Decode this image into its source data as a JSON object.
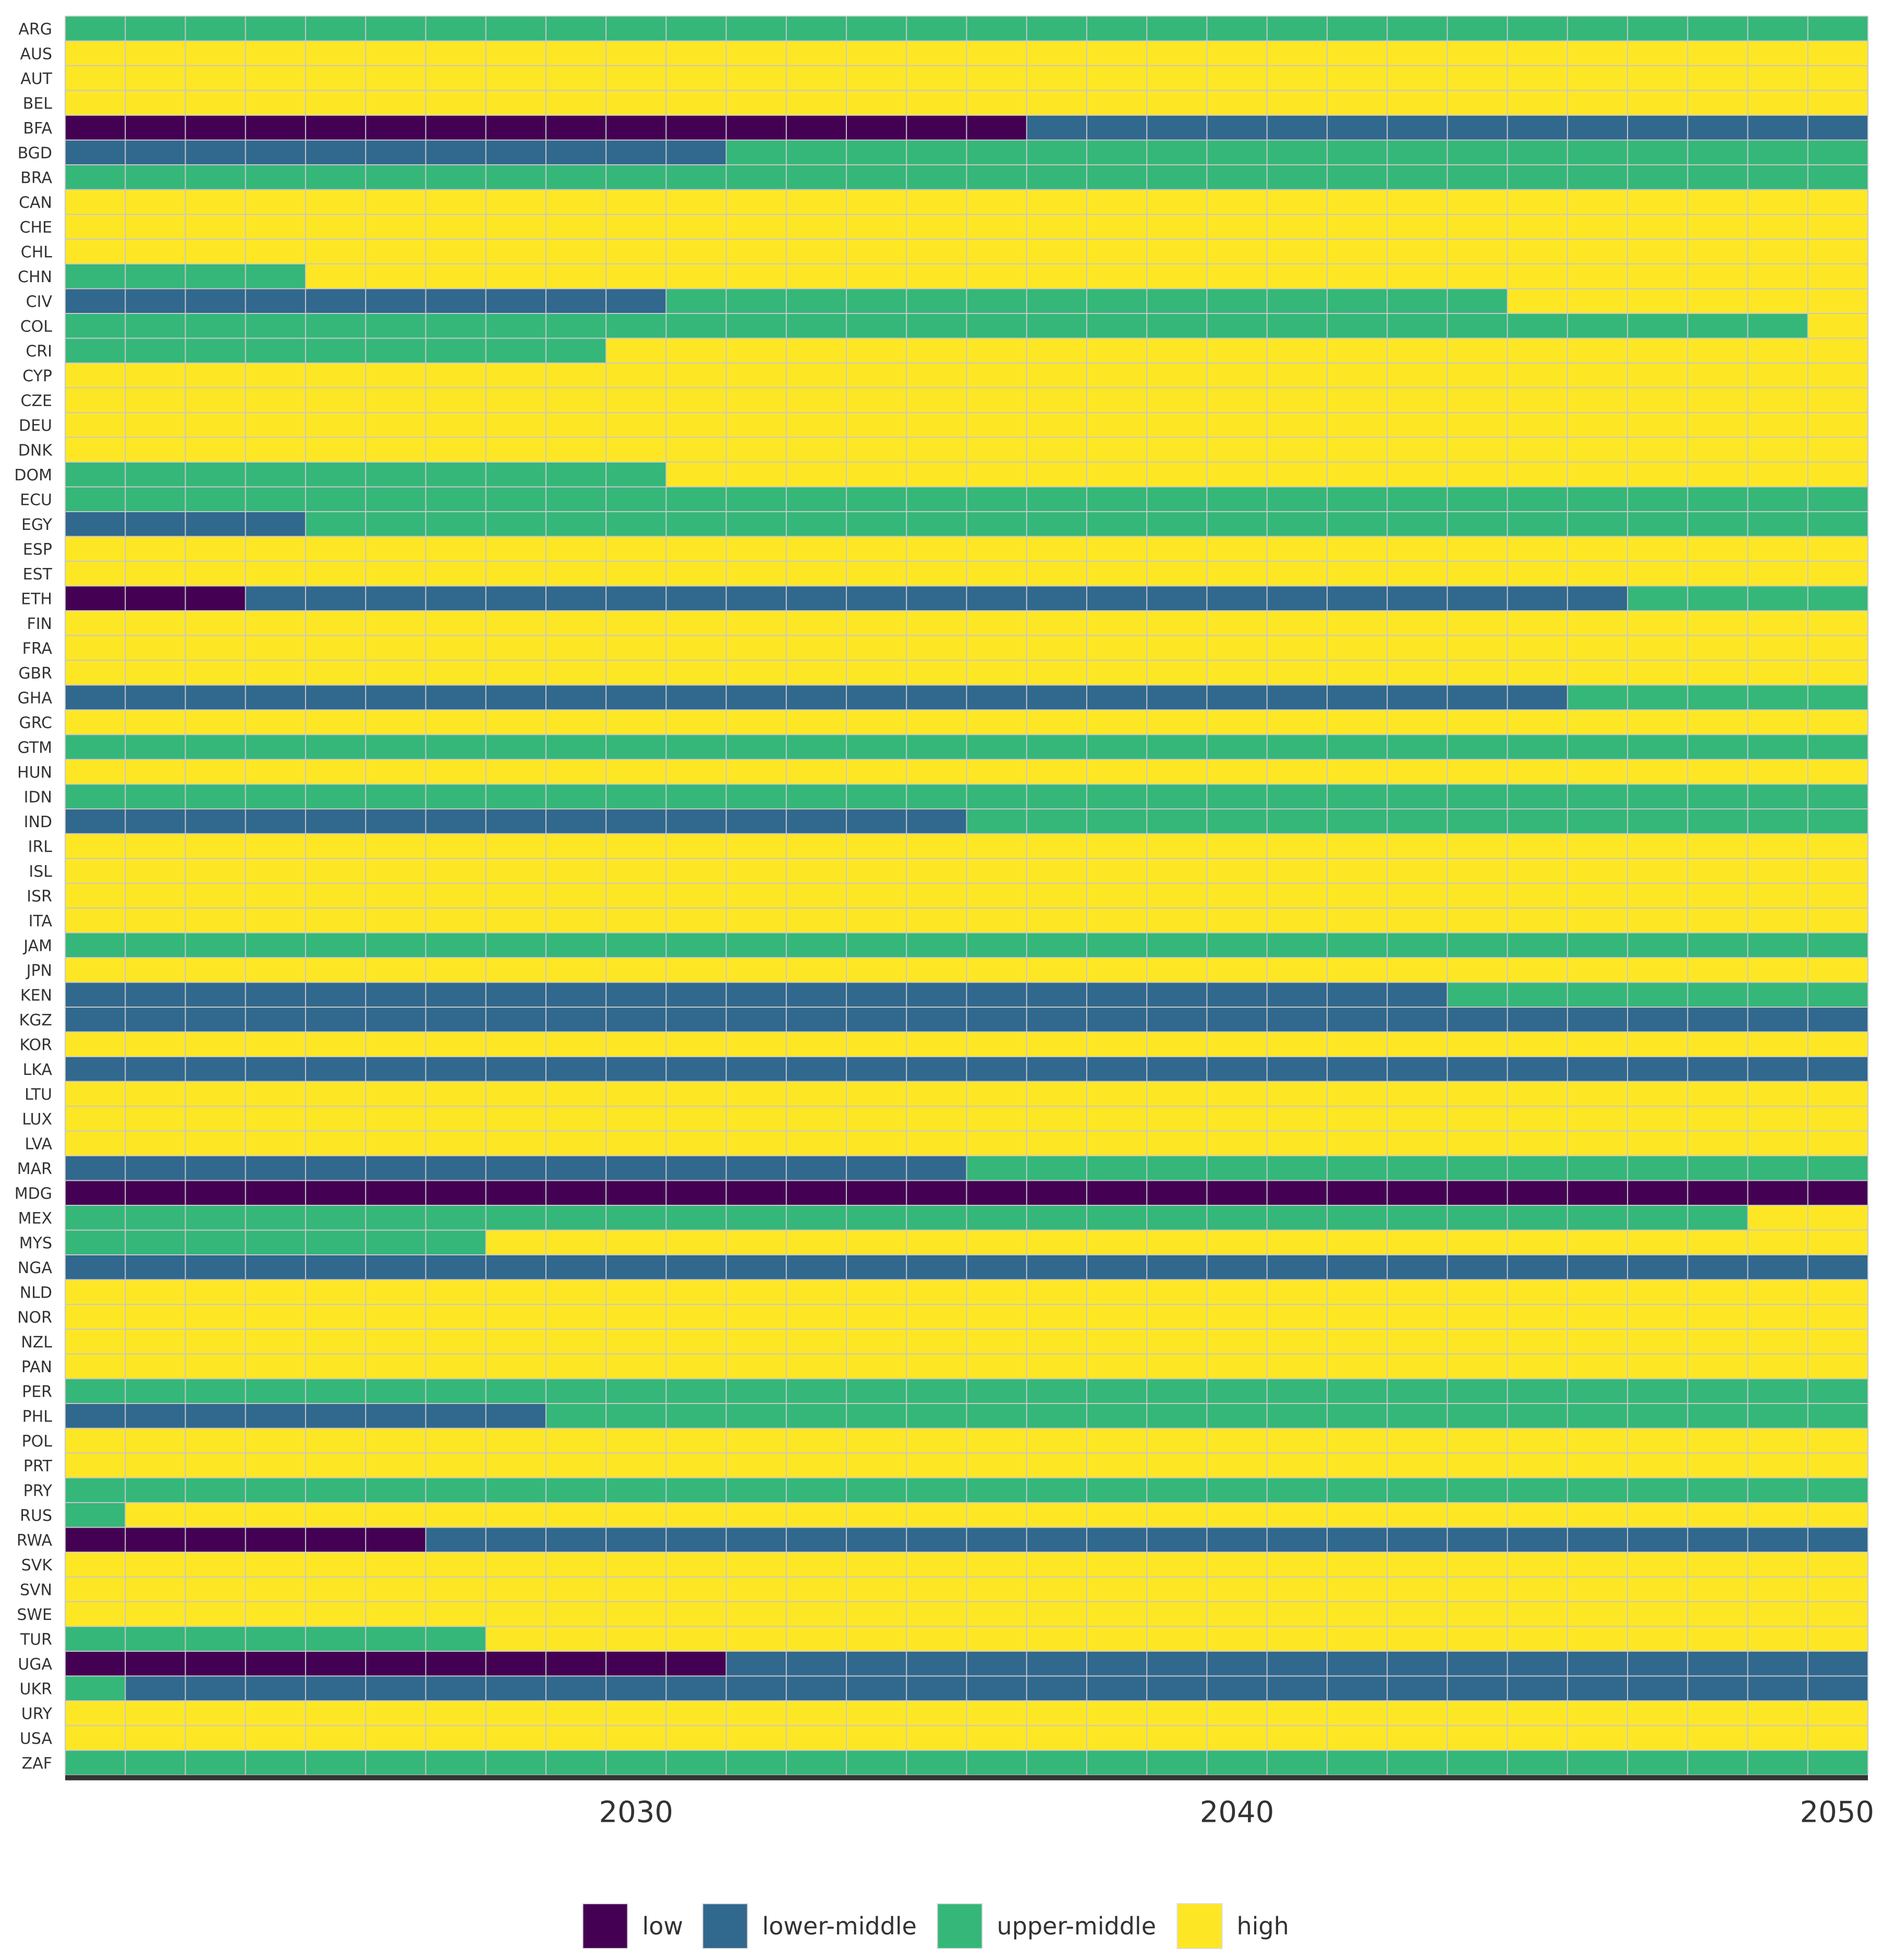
{
  "chart_data": {
    "type": "heatmap",
    "title": "",
    "xlabel": "",
    "ylabel": "",
    "years": [
      2021,
      2022,
      2023,
      2024,
      2025,
      2026,
      2027,
      2028,
      2029,
      2030,
      2031,
      2032,
      2033,
      2034,
      2035,
      2036,
      2037,
      2038,
      2039,
      2040,
      2041,
      2042,
      2043,
      2044,
      2045,
      2046,
      2047,
      2048,
      2049,
      2050
    ],
    "x_ticks": [
      "2030",
      "2040",
      "2050"
    ],
    "categories": [
      "low",
      "lower-middle",
      "upper-middle",
      "high"
    ],
    "colors": {
      "low": "#440154",
      "lower-middle": "#31688e",
      "upper-middle": "#35b779",
      "high": "#fde725"
    },
    "grid_color": "#c8c8c8",
    "axis_color": "#333333",
    "legend_position": "bottom",
    "countries": [
      {
        "code": "ARG",
        "segments": [
          [
            "upper-middle",
            2021,
            2050
          ]
        ]
      },
      {
        "code": "AUS",
        "segments": [
          [
            "high",
            2021,
            2050
          ]
        ]
      },
      {
        "code": "AUT",
        "segments": [
          [
            "high",
            2021,
            2050
          ]
        ]
      },
      {
        "code": "BEL",
        "segments": [
          [
            "high",
            2021,
            2050
          ]
        ]
      },
      {
        "code": "BFA",
        "segments": [
          [
            "low",
            2021,
            2036
          ],
          [
            "lower-middle",
            2037,
            2050
          ]
        ]
      },
      {
        "code": "BGD",
        "segments": [
          [
            "lower-middle",
            2021,
            2031
          ],
          [
            "upper-middle",
            2032,
            2050
          ]
        ]
      },
      {
        "code": "BRA",
        "segments": [
          [
            "upper-middle",
            2021,
            2050
          ]
        ]
      },
      {
        "code": "CAN",
        "segments": [
          [
            "high",
            2021,
            2050
          ]
        ]
      },
      {
        "code": "CHE",
        "segments": [
          [
            "high",
            2021,
            2050
          ]
        ]
      },
      {
        "code": "CHL",
        "segments": [
          [
            "high",
            2021,
            2050
          ]
        ]
      },
      {
        "code": "CHN",
        "segments": [
          [
            "upper-middle",
            2021,
            2024
          ],
          [
            "high",
            2025,
            2050
          ]
        ]
      },
      {
        "code": "CIV",
        "segments": [
          [
            "lower-middle",
            2021,
            2030
          ],
          [
            "upper-middle",
            2031,
            2044
          ],
          [
            "high",
            2045,
            2050
          ]
        ]
      },
      {
        "code": "COL",
        "segments": [
          [
            "upper-middle",
            2021,
            2049
          ],
          [
            "high",
            2050,
            2050
          ]
        ]
      },
      {
        "code": "CRI",
        "segments": [
          [
            "upper-middle",
            2021,
            2029
          ],
          [
            "high",
            2030,
            2050
          ]
        ]
      },
      {
        "code": "CYP",
        "segments": [
          [
            "high",
            2021,
            2050
          ]
        ]
      },
      {
        "code": "CZE",
        "segments": [
          [
            "high",
            2021,
            2050
          ]
        ]
      },
      {
        "code": "DEU",
        "segments": [
          [
            "high",
            2021,
            2050
          ]
        ]
      },
      {
        "code": "DNK",
        "segments": [
          [
            "high",
            2021,
            2050
          ]
        ]
      },
      {
        "code": "DOM",
        "segments": [
          [
            "upper-middle",
            2021,
            2030
          ],
          [
            "high",
            2031,
            2050
          ]
        ]
      },
      {
        "code": "ECU",
        "segments": [
          [
            "upper-middle",
            2021,
            2050
          ]
        ]
      },
      {
        "code": "EGY",
        "segments": [
          [
            "lower-middle",
            2021,
            2024
          ],
          [
            "upper-middle",
            2025,
            2050
          ]
        ]
      },
      {
        "code": "ESP",
        "segments": [
          [
            "high",
            2021,
            2050
          ]
        ]
      },
      {
        "code": "EST",
        "segments": [
          [
            "high",
            2021,
            2050
          ]
        ]
      },
      {
        "code": "ETH",
        "segments": [
          [
            "low",
            2021,
            2023
          ],
          [
            "lower-middle",
            2024,
            2046
          ],
          [
            "upper-middle",
            2047,
            2050
          ]
        ]
      },
      {
        "code": "FIN",
        "segments": [
          [
            "high",
            2021,
            2050
          ]
        ]
      },
      {
        "code": "FRA",
        "segments": [
          [
            "high",
            2021,
            2050
          ]
        ]
      },
      {
        "code": "GBR",
        "segments": [
          [
            "high",
            2021,
            2050
          ]
        ]
      },
      {
        "code": "GHA",
        "segments": [
          [
            "lower-middle",
            2021,
            2045
          ],
          [
            "upper-middle",
            2046,
            2050
          ]
        ]
      },
      {
        "code": "GRC",
        "segments": [
          [
            "high",
            2021,
            2050
          ]
        ]
      },
      {
        "code": "GTM",
        "segments": [
          [
            "upper-middle",
            2021,
            2050
          ]
        ]
      },
      {
        "code": "HUN",
        "segments": [
          [
            "high",
            2021,
            2050
          ]
        ]
      },
      {
        "code": "IDN",
        "segments": [
          [
            "upper-middle",
            2021,
            2050
          ]
        ]
      },
      {
        "code": "IND",
        "segments": [
          [
            "lower-middle",
            2021,
            2035
          ],
          [
            "upper-middle",
            2036,
            2050
          ]
        ]
      },
      {
        "code": "IRL",
        "segments": [
          [
            "high",
            2021,
            2050
          ]
        ]
      },
      {
        "code": "ISL",
        "segments": [
          [
            "high",
            2021,
            2050
          ]
        ]
      },
      {
        "code": "ISR",
        "segments": [
          [
            "high",
            2021,
            2050
          ]
        ]
      },
      {
        "code": "ITA",
        "segments": [
          [
            "high",
            2021,
            2050
          ]
        ]
      },
      {
        "code": "JAM",
        "segments": [
          [
            "upper-middle",
            2021,
            2050
          ]
        ]
      },
      {
        "code": "JPN",
        "segments": [
          [
            "high",
            2021,
            2050
          ]
        ]
      },
      {
        "code": "KEN",
        "segments": [
          [
            "lower-middle",
            2021,
            2043
          ],
          [
            "upper-middle",
            2044,
            2050
          ]
        ]
      },
      {
        "code": "KGZ",
        "segments": [
          [
            "lower-middle",
            2021,
            2050
          ]
        ]
      },
      {
        "code": "KOR",
        "segments": [
          [
            "high",
            2021,
            2050
          ]
        ]
      },
      {
        "code": "LKA",
        "segments": [
          [
            "lower-middle",
            2021,
            2050
          ]
        ]
      },
      {
        "code": "LTU",
        "segments": [
          [
            "high",
            2021,
            2050
          ]
        ]
      },
      {
        "code": "LUX",
        "segments": [
          [
            "high",
            2021,
            2050
          ]
        ]
      },
      {
        "code": "LVA",
        "segments": [
          [
            "high",
            2021,
            2050
          ]
        ]
      },
      {
        "code": "MAR",
        "segments": [
          [
            "lower-middle",
            2021,
            2035
          ],
          [
            "upper-middle",
            2036,
            2050
          ]
        ]
      },
      {
        "code": "MDG",
        "segments": [
          [
            "low",
            2021,
            2050
          ]
        ]
      },
      {
        "code": "MEX",
        "segments": [
          [
            "upper-middle",
            2021,
            2048
          ],
          [
            "high",
            2049,
            2050
          ]
        ]
      },
      {
        "code": "MYS",
        "segments": [
          [
            "upper-middle",
            2021,
            2027
          ],
          [
            "high",
            2028,
            2050
          ]
        ]
      },
      {
        "code": "NGA",
        "segments": [
          [
            "lower-middle",
            2021,
            2050
          ]
        ]
      },
      {
        "code": "NLD",
        "segments": [
          [
            "high",
            2021,
            2050
          ]
        ]
      },
      {
        "code": "NOR",
        "segments": [
          [
            "high",
            2021,
            2050
          ]
        ]
      },
      {
        "code": "NZL",
        "segments": [
          [
            "high",
            2021,
            2050
          ]
        ]
      },
      {
        "code": "PAN",
        "segments": [
          [
            "high",
            2021,
            2050
          ]
        ]
      },
      {
        "code": "PER",
        "segments": [
          [
            "upper-middle",
            2021,
            2050
          ]
        ]
      },
      {
        "code": "PHL",
        "segments": [
          [
            "lower-middle",
            2021,
            2028
          ],
          [
            "upper-middle",
            2029,
            2050
          ]
        ]
      },
      {
        "code": "POL",
        "segments": [
          [
            "high",
            2021,
            2050
          ]
        ]
      },
      {
        "code": "PRT",
        "segments": [
          [
            "high",
            2021,
            2050
          ]
        ]
      },
      {
        "code": "PRY",
        "segments": [
          [
            "upper-middle",
            2021,
            2050
          ]
        ]
      },
      {
        "code": "RUS",
        "segments": [
          [
            "upper-middle",
            2021,
            2021
          ],
          [
            "high",
            2022,
            2050
          ]
        ]
      },
      {
        "code": "RWA",
        "segments": [
          [
            "low",
            2021,
            2026
          ],
          [
            "lower-middle",
            2027,
            2050
          ]
        ]
      },
      {
        "code": "SVK",
        "segments": [
          [
            "high",
            2021,
            2050
          ]
        ]
      },
      {
        "code": "SVN",
        "segments": [
          [
            "high",
            2021,
            2050
          ]
        ]
      },
      {
        "code": "SWE",
        "segments": [
          [
            "high",
            2021,
            2050
          ]
        ]
      },
      {
        "code": "TUR",
        "segments": [
          [
            "upper-middle",
            2021,
            2027
          ],
          [
            "high",
            2028,
            2050
          ]
        ]
      },
      {
        "code": "UGA",
        "segments": [
          [
            "low",
            2021,
            2031
          ],
          [
            "lower-middle",
            2032,
            2050
          ]
        ]
      },
      {
        "code": "UKR",
        "segments": [
          [
            "upper-middle",
            2021,
            2021
          ],
          [
            "lower-middle",
            2022,
            2050
          ]
        ]
      },
      {
        "code": "URY",
        "segments": [
          [
            "high",
            2021,
            2050
          ]
        ]
      },
      {
        "code": "USA",
        "segments": [
          [
            "high",
            2021,
            2050
          ]
        ]
      },
      {
        "code": "ZAF",
        "segments": [
          [
            "upper-middle",
            2021,
            2050
          ]
        ]
      }
    ]
  }
}
